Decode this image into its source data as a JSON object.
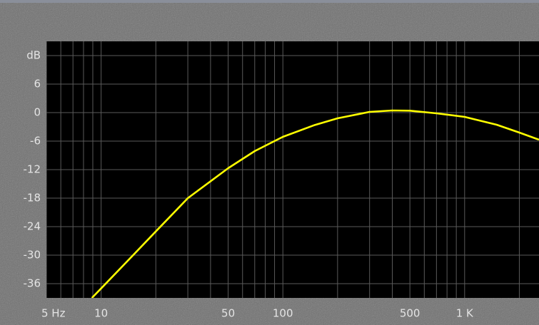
{
  "chart_data": {
    "type": "line",
    "xscale": "log",
    "grid": true,
    "xlim": [
      5,
      2566
    ],
    "ylim": [
      -39,
      15
    ],
    "xticks": [
      {
        "value": 5,
        "label": "5 Hz"
      },
      10,
      50,
      100,
      500,
      {
        "value": 1000,
        "label": "1 K"
      }
    ],
    "x_grid": [
      5,
      6,
      7,
      8,
      9,
      10,
      20,
      30,
      40,
      50,
      60,
      70,
      80,
      90,
      100,
      200,
      300,
      400,
      500,
      600,
      700,
      800,
      900,
      1000,
      2000
    ],
    "yticks": [
      {
        "value": 12,
        "label": "dB"
      },
      6,
      0,
      -6,
      -12,
      -18,
      -24,
      -30,
      -36
    ],
    "x": [
      8.9,
      10,
      15,
      20,
      30,
      50,
      70,
      100,
      150,
      200,
      300,
      400,
      500,
      700,
      1000,
      1500,
      2000,
      2566
    ],
    "series": [
      {
        "color": "#ffff00",
        "values": [
          -39,
          -37,
          -30,
          -25,
          -18,
          -11.7,
          -8.1,
          -5.1,
          -2.6,
          -1.2,
          0.15,
          0.45,
          0.4,
          -0.15,
          -0.9,
          -2.55,
          -4.2,
          -5.7
        ]
      }
    ]
  }
}
